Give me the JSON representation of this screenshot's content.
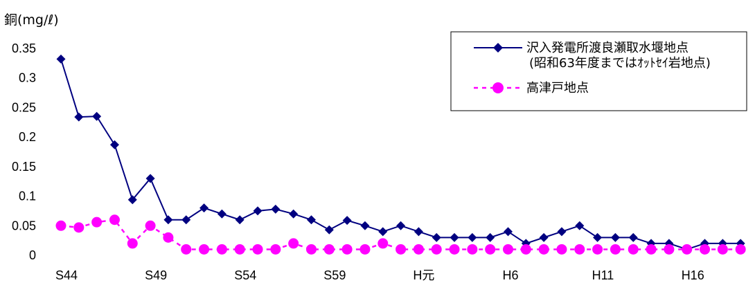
{
  "chart_data": {
    "type": "line",
    "ylabel": "銅(mg/ℓ)",
    "ylim": [
      0,
      0.35
    ],
    "yticks": [
      "0",
      "0.05",
      "0.1",
      "0.15",
      "0.2",
      "0.25",
      "0.3",
      "0.35"
    ],
    "categories": [
      "S44",
      "S45",
      "S46",
      "S47",
      "S48",
      "S49",
      "S50",
      "S51",
      "S52",
      "S53",
      "S54",
      "S55",
      "S56",
      "S57",
      "S58",
      "S59",
      "S60",
      "S61",
      "S62",
      "S63",
      "H元",
      "H2",
      "H3",
      "H4",
      "H5",
      "H6",
      "H7",
      "H8",
      "H9",
      "H10",
      "H11",
      "H12",
      "H13",
      "H14",
      "H15",
      "H16",
      "H17",
      "H18",
      "H19"
    ],
    "xtick_labels": [
      {
        "index": 0,
        "label": "S44"
      },
      {
        "index": 5,
        "label": "S49"
      },
      {
        "index": 10,
        "label": "S54"
      },
      {
        "index": 15,
        "label": "S59"
      },
      {
        "index": 20,
        "label": "H元"
      },
      {
        "index": 25,
        "label": "H6"
      },
      {
        "index": 30,
        "label": "H11"
      },
      {
        "index": 35,
        "label": "H16"
      }
    ],
    "series": [
      {
        "name": "沢入発電所渡良瀬取水堰地点",
        "name_note": "(昭和63年度まではｵｯﾄｾｲ岩地点)",
        "color": "#000080",
        "marker": "diamond",
        "line": "solid",
        "values": [
          0.332,
          0.234,
          0.235,
          0.187,
          0.094,
          0.13,
          0.06,
          0.06,
          0.08,
          0.07,
          0.06,
          0.075,
          0.078,
          0.07,
          0.06,
          0.043,
          0.059,
          0.05,
          0.04,
          0.05,
          0.04,
          0.03,
          0.03,
          0.03,
          0.03,
          0.04,
          0.02,
          0.03,
          0.04,
          0.05,
          0.03,
          0.03,
          0.03,
          0.02,
          0.02,
          0.01,
          0.02,
          0.02,
          0.02
        ]
      },
      {
        "name": "高津戸地点",
        "color": "#FF00FF",
        "marker": "circle",
        "line": "dashed",
        "values": [
          0.05,
          0.047,
          0.056,
          0.06,
          0.02,
          0.05,
          0.03,
          0.01,
          0.01,
          0.01,
          0.01,
          0.01,
          0.01,
          0.02,
          0.01,
          0.01,
          0.01,
          0.01,
          0.02,
          0.01,
          0.01,
          0.01,
          0.01,
          0.01,
          0.01,
          0.01,
          0.01,
          0.01,
          0.01,
          0.01,
          0.01,
          0.01,
          0.01,
          0.01,
          0.01,
          0.01,
          0.01,
          0.01,
          0.01
        ]
      }
    ],
    "legend": "top-right",
    "grid": false
  }
}
